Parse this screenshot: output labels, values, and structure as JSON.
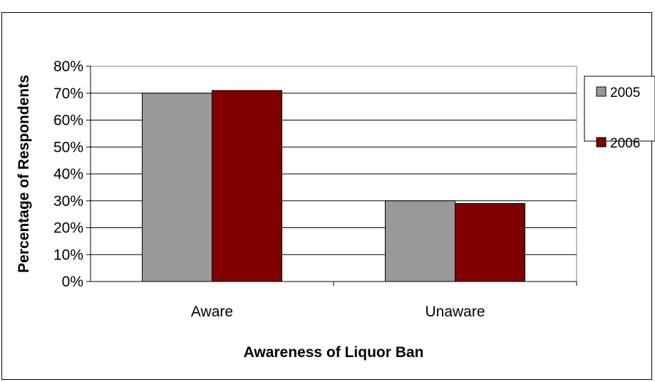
{
  "chart_data": {
    "type": "bar",
    "categories": [
      "Aware",
      "Unaware"
    ],
    "series": [
      {
        "name": "2005",
        "values": [
          70,
          30
        ],
        "color": "#999999"
      },
      {
        "name": "2006",
        "values": [
          71,
          29
        ],
        "color": "#800000"
      }
    ],
    "xlabel": "Awareness of Liquor Ban",
    "ylabel": "Percentage of Respondents",
    "ylim": [
      0,
      80
    ],
    "yticks": [
      "0%",
      "10%",
      "20%",
      "30%",
      "40%",
      "50%",
      "60%",
      "70%",
      "80%"
    ],
    "grid": true,
    "legend_position": "right"
  }
}
